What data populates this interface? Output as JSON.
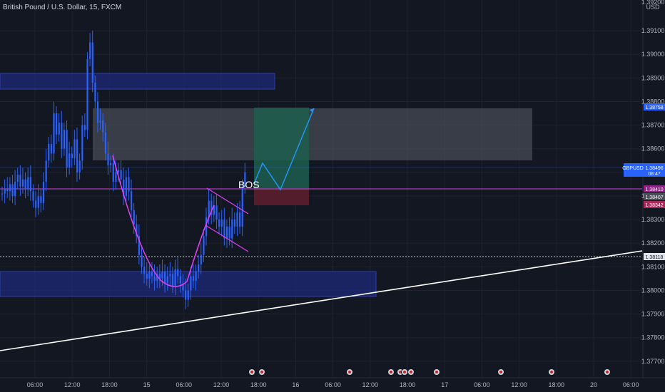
{
  "header": {
    "symbol_title": "British Pound / U.S. Dollar, 15, FXCM"
  },
  "price_axis": {
    "currency": "USD",
    "top_partial": "1.39200"
  },
  "colors": {
    "background": "#131722",
    "grid": "#1e222d",
    "candle": "#2962ff",
    "magenta": "#e040fb",
    "white_line": "#ffffff",
    "zone_blue": "#1e2a7a",
    "zone_gray": "#4a4e57",
    "target_green": "#1d5e4f",
    "stop_red": "#5b1e2c",
    "path_blue": "#2196f3",
    "badge_blue": "#2962ff",
    "badge_magenta": "#8e2484"
  },
  "labels": {
    "bos": "BOS",
    "gbpusd_tag": "GBPUSD",
    "gbpusd_price": "1.38496",
    "countdown": "08:47",
    "target_price": "1.38758",
    "entry_price": "1.38410",
    "mid_price": "1.38407",
    "stop_price": "1.38342",
    "hline_price": "1.38118"
  },
  "chart_data": {
    "type": "candlestick",
    "title": "British Pound / U.S. Dollar, 15, FXCM",
    "ylabel": "USD",
    "ylim": [
      1.3763,
      1.3923
    ],
    "yticks": [
      1.377,
      1.378,
      1.379,
      1.38,
      1.381,
      1.382,
      1.383,
      1.384,
      1.385,
      1.386,
      1.387,
      1.388,
      1.389,
      1.39,
      1.391
    ],
    "ytick_labels": [
      "1.37700",
      "1.37800",
      "1.37900",
      "1.38000",
      "1.38100",
      "1.38200",
      "1.38300",
      "1.38400",
      "1.38500",
      "1.38600",
      "1.38700",
      "1.38800",
      "1.38900",
      "1.39000",
      "1.39100"
    ],
    "xticks": [
      {
        "label": "06:00",
        "t": 0
      },
      {
        "label": "12:00",
        "t": 24
      },
      {
        "label": "18:00",
        "t": 48
      },
      {
        "label": "15",
        "t": 72
      },
      {
        "label": "06:00",
        "t": 96
      },
      {
        "label": "12:00",
        "t": 120
      },
      {
        "label": "18:00",
        "t": 144
      },
      {
        "label": "16",
        "t": 168
      },
      {
        "label": "06:00",
        "t": 192
      },
      {
        "label": "12:00",
        "t": 216
      },
      {
        "label": "18:00",
        "t": 240
      },
      {
        "label": "17",
        "t": 264
      },
      {
        "label": "06:00",
        "t": 288
      },
      {
        "label": "12:00",
        "t": 312
      },
      {
        "label": "18:00",
        "t": 336
      },
      {
        "label": "20",
        "t": 360
      },
      {
        "label": "06:00",
        "t": 384
      }
    ],
    "candles_close": [
      1.3841,
      1.3843,
      1.3842,
      1.3845,
      1.384,
      1.3846,
      1.3849,
      1.3844,
      1.3847,
      1.3843,
      1.3848,
      1.3842,
      1.3838,
      1.3835,
      1.384,
      1.3837,
      1.3846,
      1.3855,
      1.3862,
      1.3858,
      1.3875,
      1.3866,
      1.3871,
      1.386,
      1.3868,
      1.3852,
      1.3858,
      1.3856,
      1.3864,
      1.385,
      1.3855,
      1.387,
      1.3868,
      1.3898,
      1.3905,
      1.3888,
      1.388,
      1.3871,
      1.3872,
      1.3867,
      1.3858,
      1.3853,
      1.3854,
      1.3846,
      1.385,
      1.3851,
      1.3847,
      1.384,
      1.3848,
      1.3842,
      1.3834,
      1.3828,
      1.3823,
      1.3815,
      1.381,
      1.3807,
      1.3805,
      1.3808,
      1.3806,
      1.3804,
      1.3807,
      1.3805,
      1.3808,
      1.3803,
      1.3806,
      1.3807,
      1.3802,
      1.3809,
      1.3806,
      1.3803,
      1.38,
      1.3796,
      1.38,
      1.3806,
      1.3804,
      1.3808,
      1.3811,
      1.3815,
      1.3823,
      1.3831,
      1.3838,
      1.3832,
      1.3836,
      1.383,
      1.3827,
      1.383,
      1.3822,
      1.3827,
      1.3822,
      1.383,
      1.3827,
      1.3833,
      1.3827,
      1.3844,
      1.385
    ],
    "overlays": {
      "resistance_zone_top": [
        1.3891,
        1.3885
      ],
      "supply_zone": [
        1.3875,
        1.3855
      ],
      "demand_zone": [
        1.3807,
        1.3797
      ],
      "target_box": [
        1.38758,
        1.3841
      ],
      "stop_box": [
        1.3841,
        1.38342
      ],
      "horizontal_line": 1.38118,
      "magenta_line": 1.3841,
      "gbpusd_last": 1.38496
    }
  }
}
